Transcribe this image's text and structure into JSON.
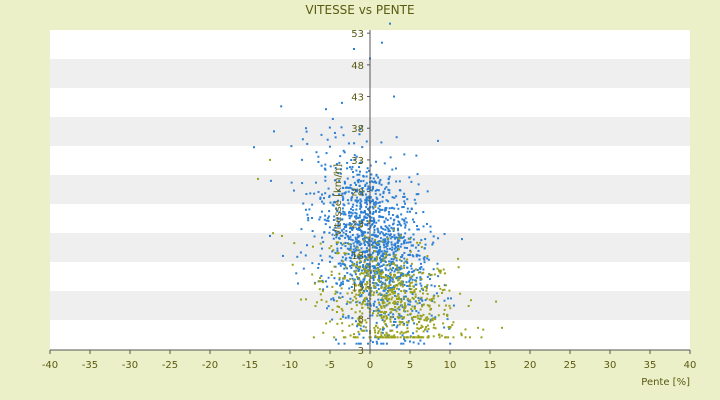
{
  "chart_data": {
    "type": "scatter",
    "title": "VITESSE vs PENTE",
    "xlabel": "Pente [%]",
    "ylabel": "Vitesse [km/h]",
    "xlim": [
      -40,
      40
    ],
    "ylim": [
      3,
      56
    ],
    "x_ticks": [
      -40,
      -35,
      -30,
      -25,
      -20,
      -15,
      -10,
      -5,
      0,
      5,
      10,
      15,
      20,
      25,
      30,
      35,
      40
    ],
    "y_ticks": [
      3,
      8,
      13,
      18,
      23,
      28,
      33,
      38,
      43,
      48,
      53
    ],
    "x_tick_labels": [
      "-40",
      "-35",
      "-30",
      "-25",
      "-20",
      "-15",
      "-10",
      "-5",
      "0",
      "5",
      "10",
      "15",
      "20",
      "25",
      "30",
      "35",
      "40"
    ],
    "y_tick_labels": [
      "3",
      "8",
      "13",
      "18",
      "23",
      "28",
      "33",
      "38",
      "43",
      "48",
      "53"
    ],
    "grid": true,
    "band_colors": [
      "#ffffff",
      "#efefef"
    ],
    "series": [
      {
        "color": "#2b7fd4",
        "point_count": 1400,
        "summary": {
          "x_range": [
            -15,
            12
          ],
          "y_range": [
            4,
            55
          ],
          "center": [
            0.5,
            20
          ]
        },
        "sample_points": [
          [
            -14.5,
            35
          ],
          [
            -12,
            37.5
          ],
          [
            -8,
            38
          ],
          [
            -5.5,
            41
          ],
          [
            -3.5,
            42
          ],
          [
            -2,
            50.5
          ],
          [
            0,
            49
          ],
          [
            1.5,
            51.5
          ],
          [
            2.5,
            54.5
          ],
          [
            3,
            43
          ],
          [
            8.5,
            36
          ],
          [
            11.5,
            20.5
          ],
          [
            -12.5,
            21
          ],
          [
            -6,
            19
          ],
          [
            0,
            24
          ],
          [
            4,
            15
          ],
          [
            -9,
            13.5
          ],
          [
            2,
            7
          ]
        ]
      },
      {
        "color": "#9aa21a",
        "point_count": 650,
        "summary": {
          "x_range": [
            -14.5,
            17
          ],
          "y_range": [
            5,
            33
          ],
          "center": [
            2.5,
            11
          ]
        },
        "sample_points": [
          [
            -14,
            30
          ],
          [
            -12.5,
            33
          ],
          [
            -11,
            21
          ],
          [
            -8,
            11
          ],
          [
            -5,
            7.5
          ],
          [
            -2,
            5.5
          ],
          [
            0,
            6
          ],
          [
            2,
            9
          ],
          [
            4,
            10
          ],
          [
            6,
            8
          ],
          [
            8,
            7
          ],
          [
            10,
            6.5
          ],
          [
            13.5,
            6.5
          ],
          [
            16.5,
            6.5
          ],
          [
            9,
            12
          ],
          [
            3,
            22
          ],
          [
            -3,
            16
          ]
        ]
      }
    ],
    "chart_style": {
      "axis_color": "#555555",
      "zero_line_color": "#555555"
    }
  }
}
